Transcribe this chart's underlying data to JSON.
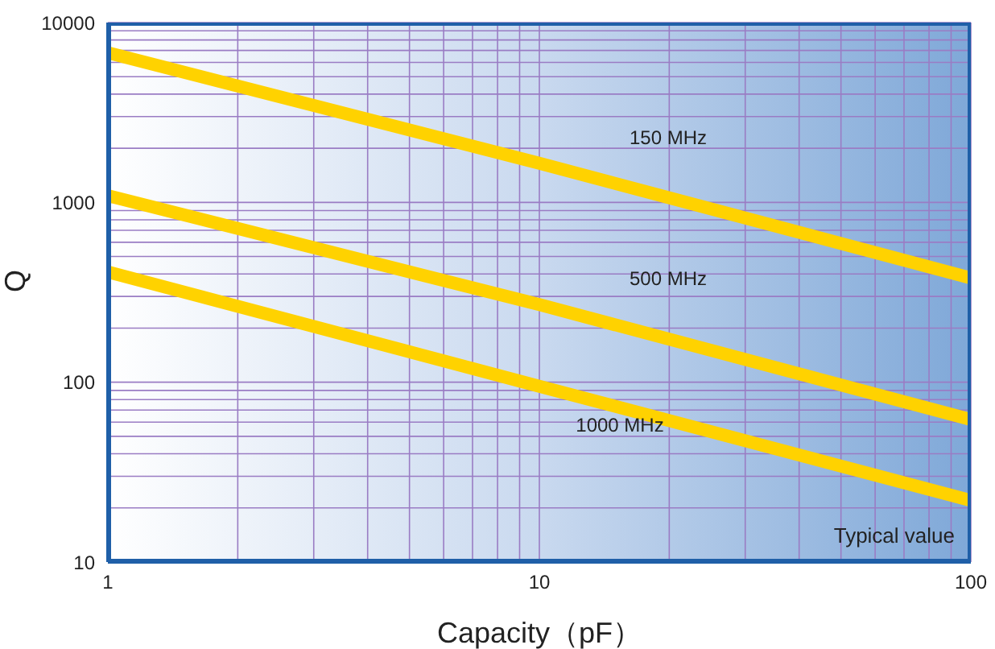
{
  "chart_data": {
    "type": "line",
    "xlabel": "Capacity（pF）",
    "ylabel": "Q",
    "log": "xy",
    "grid": true,
    "legend": false,
    "marker": "none",
    "line_style": "solid",
    "x": [
      1,
      10,
      100
    ],
    "series": [
      {
        "name": "150 MHz",
        "color": "#ffd200",
        "values": [
          6800,
          1650,
          380
        ]
      },
      {
        "name": "500 MHz",
        "color": "#ffd200",
        "values": [
          1090,
          270,
          62
        ]
      },
      {
        "name": "1000 MHz",
        "color": "#ffd200",
        "values": [
          410,
          95,
          22
        ]
      }
    ],
    "xlim": [
      1,
      100
    ],
    "ylim": [
      10,
      10000
    ],
    "xticks": [
      1,
      {
        "value": 2,
        "label": null
      },
      {
        "value": 3,
        "label": null
      },
      {
        "value": 4,
        "label": null
      },
      {
        "value": 5,
        "label": null
      },
      {
        "value": 6,
        "label": null
      },
      {
        "value": 7,
        "label": null
      },
      {
        "value": 8,
        "label": null
      },
      {
        "value": 9,
        "label": null
      },
      10,
      {
        "value": 20,
        "label": null
      },
      {
        "value": 30,
        "label": null
      },
      {
        "value": 40,
        "label": null
      },
      {
        "value": 50,
        "label": null
      },
      {
        "value": 60,
        "label": null
      },
      {
        "value": 70,
        "label": null
      },
      {
        "value": 80,
        "label": null
      },
      {
        "value": 90,
        "label": null
      },
      100
    ],
    "yticks": [
      10,
      {
        "value": 20,
        "label": null
      },
      {
        "value": 30,
        "label": null
      },
      {
        "value": 40,
        "label": null
      },
      {
        "value": 50,
        "label": null
      },
      {
        "value": 60,
        "label": null
      },
      {
        "value": 70,
        "label": null
      },
      {
        "value": 80,
        "label": null
      },
      {
        "value": 90,
        "label": null
      },
      100,
      {
        "value": 200,
        "label": null
      },
      {
        "value": 300,
        "label": null
      },
      {
        "value": 400,
        "label": null
      },
      {
        "value": 500,
        "label": null
      },
      {
        "value": 600,
        "label": null
      },
      {
        "value": 700,
        "label": null
      },
      {
        "value": 800,
        "label": null
      },
      {
        "value": 900,
        "label": null
      },
      1000,
      {
        "value": 2000,
        "label": null
      },
      {
        "value": 3000,
        "label": null
      },
      {
        "value": 4000,
        "label": null
      },
      {
        "value": 5000,
        "label": null
      },
      {
        "value": 6000,
        "label": null
      },
      {
        "value": 7000,
        "label": null
      },
      {
        "value": 8000,
        "label": null
      },
      {
        "value": 9000,
        "label": null
      },
      10000
    ],
    "annotations": [
      "Typical value"
    ]
  }
}
